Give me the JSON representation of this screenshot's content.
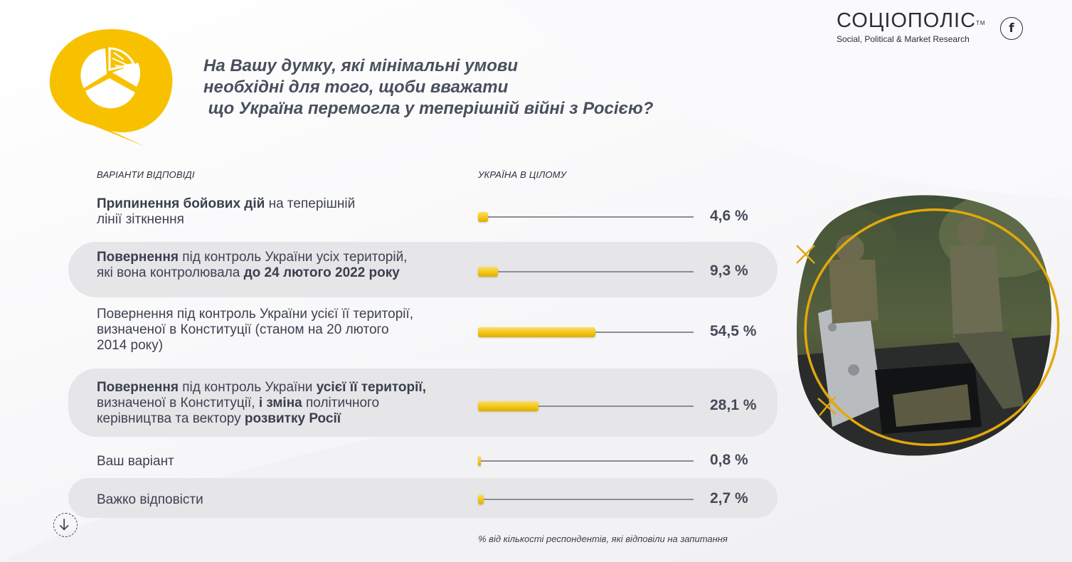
{
  "brand": {
    "name": "СОЦІОПОЛІС",
    "tm": "TM",
    "tagline": "Social, Political & Market Research",
    "facebook": "f"
  },
  "question": {
    "lines": [
      "На Вашу думку, які мінімальні умови",
      "необхідні для того, щоби вважати",
      " що Україна перемогла у теперішній війні з Росією?"
    ]
  },
  "headers": {
    "options": "ВАРІАНТИ ВІДПОВІДІ",
    "total": "УКРАЇНА В ЦІЛОМУ"
  },
  "chart_data": {
    "type": "bar",
    "orientation": "horizontal",
    "xlim": [
      0,
      100
    ],
    "unit": "%",
    "categories": [
      "Припинення бойових дій на теперішній лінії зіткнення",
      "Повернення під контроль України усіх територій, які вона контролювала до 24 лютого 2022 року",
      "Повернення під контроль України усієї її території, визначеної в Конституції (станом на 20 лютого 2014 року)",
      "Повернення під контроль України усієї її території, визначеної в Конституції, і зміна політичного керівництва та вектору розвитку Росії",
      "Ваш варіант",
      "Важко відповісти"
    ],
    "series": [
      {
        "name": "УКРАЇНА В ЦІЛОМУ",
        "values": [
          4.6,
          9.3,
          54.5,
          28.1,
          0.8,
          2.7
        ],
        "labels": [
          "4,6 %",
          "9,3 %",
          "54,5 %",
          "28,1 %",
          "0,8 %",
          "2,7 %"
        ]
      }
    ],
    "bar_color": "#f2c30f",
    "row_shading": [
      false,
      true,
      false,
      true,
      false,
      true
    ]
  },
  "rows_rich": [
    [
      {
        "t": "Припинення бойових дій",
        "b": true
      },
      {
        "t": " на теперішній",
        "b": false
      },
      {
        "br": true
      },
      {
        "t": "лінії зіткнення",
        "b": false
      }
    ],
    [
      {
        "t": "Повернення",
        "b": true
      },
      {
        "t": " під контроль України усіх територій,",
        "b": false
      },
      {
        "br": true
      },
      {
        "t": "які вона контролювала ",
        "b": false
      },
      {
        "t": "до 24 лютого 2022 року",
        "b": true
      }
    ],
    [
      {
        "t": "Повернення під контроль України усієї її території,",
        "b": false
      },
      {
        "br": true
      },
      {
        "t": "визначеної в Конституції (станом на 20 лютого",
        "b": false
      },
      {
        "br": true
      },
      {
        "t": "2014 року)",
        "b": false
      }
    ],
    [
      {
        "t": "Повернення",
        "b": true
      },
      {
        "t": " під контроль України ",
        "b": false
      },
      {
        "t": "усієї її території,",
        "b": true
      },
      {
        "br": true
      },
      {
        "t": "визначеної в Конституції, ",
        "b": false
      },
      {
        "t": "і зміна",
        "b": true
      },
      {
        "t": " політичного",
        "b": false
      },
      {
        "br": true
      },
      {
        "t": "керівництва та вектору ",
        "b": false
      },
      {
        "t": "розвитку Росії",
        "b": true
      }
    ],
    [
      {
        "t": "Ваш варіант",
        "b": false
      }
    ],
    [
      {
        "t": "Важко відповісти",
        "b": false
      }
    ]
  ],
  "footnote": "% від кількості респондентів, які відповіли на запитання",
  "colors": {
    "accent": "#f7c100",
    "ring": "#e2a80c",
    "text": "#3d4250",
    "shade": "#e6e5e8"
  }
}
